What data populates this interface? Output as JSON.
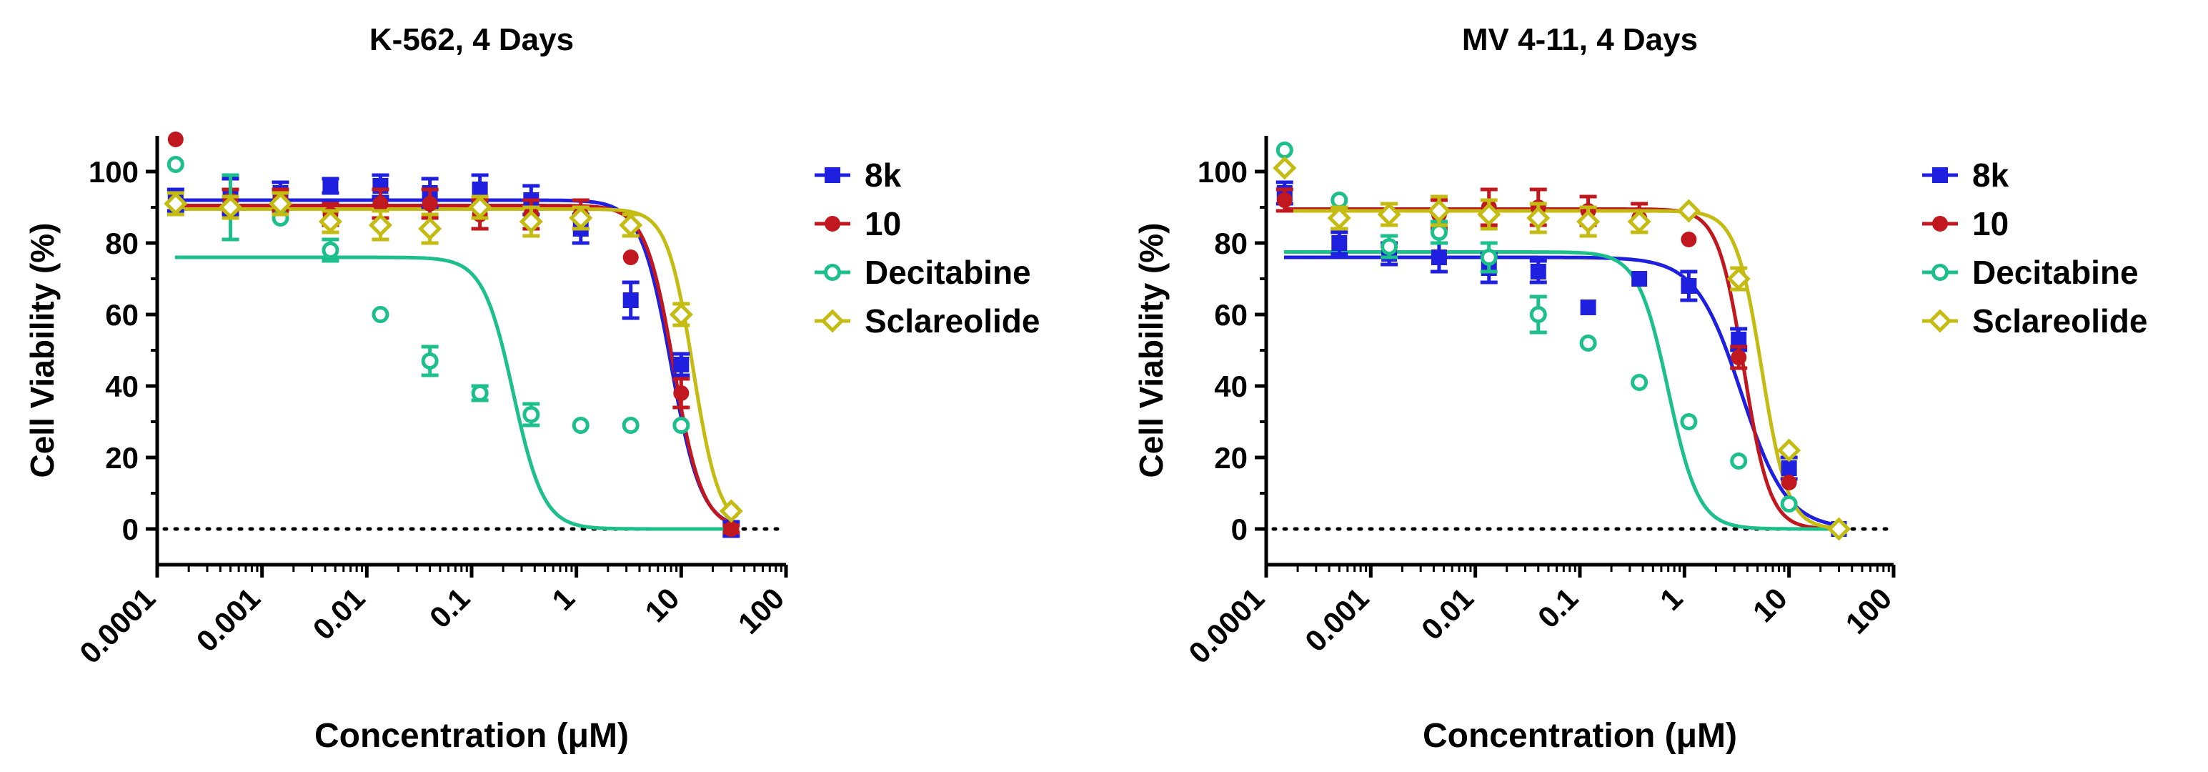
{
  "chart_data": [
    {
      "type": "scatter",
      "title": "K-562, 4 Days",
      "xlabel": "Concentration (μM)",
      "ylabel": "Cell Viability (%)",
      "xscale": "log",
      "xlim": [
        0.0001,
        100
      ],
      "ylim": [
        -10,
        110
      ],
      "xticks": [
        0.0001,
        0.001,
        0.01,
        0.1,
        1,
        10,
        100
      ],
      "xtick_labels": [
        "0.0001",
        "0.001",
        "0.01",
        "0.1",
        "1",
        "10",
        "100"
      ],
      "yticks": [
        0,
        20,
        40,
        60,
        80,
        100
      ],
      "ytick_labels": [
        "0",
        "20",
        "40",
        "60",
        "80",
        "100"
      ],
      "reference_line": 0,
      "legend_position": "right",
      "series": [
        {
          "name": "8k",
          "color": "#1f1fe0",
          "marker": "square",
          "points": [
            {
              "x": 0.00015,
              "y": 92,
              "err": 3
            },
            {
              "x": 0.0005,
              "y": 93,
              "err": 5
            },
            {
              "x": 0.0015,
              "y": 94,
              "err": 3
            },
            {
              "x": 0.0045,
              "y": 96,
              "err": 2
            },
            {
              "x": 0.0135,
              "y": 96,
              "err": 3
            },
            {
              "x": 0.04,
              "y": 94,
              "err": 4
            },
            {
              "x": 0.12,
              "y": 95,
              "err": 4
            },
            {
              "x": 0.37,
              "y": 92,
              "err": 4
            },
            {
              "x": 1.1,
              "y": 84,
              "err": 4
            },
            {
              "x": 3.3,
              "y": 64,
              "err": 5
            },
            {
              "x": 10,
              "y": 46,
              "err": 3
            },
            {
              "x": 30,
              "y": 0,
              "err": 2
            }
          ],
          "fit": {
            "top": 92,
            "bottom": 0,
            "ic50": 8,
            "hill": 3
          }
        },
        {
          "name": "10",
          "color": "#c0181e",
          "marker": "circle",
          "points": [
            {
              "x": 0.00015,
              "y": 109,
              "err": 0
            },
            {
              "x": 0.0005,
              "y": 92,
              "err": 3
            },
            {
              "x": 0.0015,
              "y": 92,
              "err": 3
            },
            {
              "x": 0.0045,
              "y": 88,
              "err": 3
            },
            {
              "x": 0.0135,
              "y": 91,
              "err": 4
            },
            {
              "x": 0.04,
              "y": 91,
              "err": 4
            },
            {
              "x": 0.12,
              "y": 88,
              "err": 4
            },
            {
              "x": 0.37,
              "y": 88,
              "err": 4
            },
            {
              "x": 1.1,
              "y": 88,
              "err": 4
            },
            {
              "x": 3.3,
              "y": 76,
              "err": 0
            },
            {
              "x": 10,
              "y": 38,
              "err": 4
            },
            {
              "x": 30,
              "y": 0,
              "err": 1
            }
          ],
          "fit": {
            "top": 90.5,
            "bottom": 0,
            "ic50": 8.5,
            "hill": 3.2
          }
        },
        {
          "name": "Decitabine",
          "color": "#1dbf8a",
          "marker": "open-circle",
          "points": [
            {
              "x": 0.00015,
              "y": 102,
              "err": 0
            },
            {
              "x": 0.0005,
              "y": 90,
              "err": 9
            },
            {
              "x": 0.0015,
              "y": 87,
              "err": 0
            },
            {
              "x": 0.0045,
              "y": 78,
              "err": 3
            },
            {
              "x": 0.0135,
              "y": 60,
              "err": 0
            },
            {
              "x": 0.04,
              "y": 47,
              "err": 4
            },
            {
              "x": 0.12,
              "y": 38,
              "err": 2
            },
            {
              "x": 0.37,
              "y": 32,
              "err": 3
            },
            {
              "x": 1.1,
              "y": 29,
              "err": 0
            },
            {
              "x": 3.3,
              "y": 29,
              "err": 0
            },
            {
              "x": 10,
              "y": 29,
              "err": 0
            },
            {
              "x": 30,
              "y": 5,
              "err": 0
            }
          ],
          "fit": {
            "top": 76,
            "bottom": 0,
            "ic50": 0.25,
            "hill": 3
          }
        },
        {
          "name": "Sclareolide",
          "color": "#c4bc12",
          "marker": "open-diamond",
          "points": [
            {
              "x": 0.00015,
              "y": 91,
              "err": 3
            },
            {
              "x": 0.0005,
              "y": 90,
              "err": 3
            },
            {
              "x": 0.0015,
              "y": 91,
              "err": 3
            },
            {
              "x": 0.0045,
              "y": 86,
              "err": 3
            },
            {
              "x": 0.0135,
              "y": 85,
              "err": 4
            },
            {
              "x": 0.04,
              "y": 84,
              "err": 4
            },
            {
              "x": 0.12,
              "y": 90,
              "err": 3
            },
            {
              "x": 0.37,
              "y": 86,
              "err": 4
            },
            {
              "x": 1.1,
              "y": 87,
              "err": 3
            },
            {
              "x": 3.3,
              "y": 85,
              "err": 3
            },
            {
              "x": 10,
              "y": 60,
              "err": 3
            },
            {
              "x": 30,
              "y": 5,
              "err": 0
            }
          ],
          "fit": {
            "top": 89.5,
            "bottom": 0,
            "ic50": 13,
            "hill": 3.5
          }
        }
      ]
    },
    {
      "type": "scatter",
      "title": "MV 4-11, 4 Days",
      "xlabel": "Concentration (μM)",
      "ylabel": "Cell Viability (%)",
      "xscale": "log",
      "xlim": [
        0.0001,
        100
      ],
      "ylim": [
        -10,
        110
      ],
      "xticks": [
        0.0001,
        0.001,
        0.01,
        0.1,
        1,
        10,
        100
      ],
      "xtick_labels": [
        "0.0001",
        "0.001",
        "0.01",
        "0.1",
        "1",
        "10",
        "100"
      ],
      "yticks": [
        0,
        20,
        40,
        60,
        80,
        100
      ],
      "ytick_labels": [
        "0",
        "20",
        "40",
        "60",
        "80",
        "100"
      ],
      "reference_line": 0,
      "legend_position": "right",
      "series": [
        {
          "name": "8k",
          "color": "#1f1fe0",
          "marker": "square",
          "points": [
            {
              "x": 0.00015,
              "y": 94,
              "err": 3
            },
            {
              "x": 0.0005,
              "y": 80,
              "err": 3
            },
            {
              "x": 0.0015,
              "y": 77,
              "err": 3
            },
            {
              "x": 0.0045,
              "y": 76,
              "err": 4
            },
            {
              "x": 0.0135,
              "y": 73,
              "err": 4
            },
            {
              "x": 0.04,
              "y": 72,
              "err": 3
            },
            {
              "x": 0.12,
              "y": 62,
              "err": 0
            },
            {
              "x": 0.37,
              "y": 70,
              "err": 0
            },
            {
              "x": 1.1,
              "y": 68,
              "err": 4
            },
            {
              "x": 3.3,
              "y": 53,
              "err": 3
            },
            {
              "x": 10,
              "y": 17,
              "err": 3
            },
            {
              "x": 30,
              "y": 0,
              "err": 0
            }
          ],
          "fit": {
            "top": 76,
            "bottom": 0,
            "ic50": 3.5,
            "hill": 2
          }
        },
        {
          "name": "10",
          "color": "#c0181e",
          "marker": "circle",
          "points": [
            {
              "x": 0.00015,
              "y": 92,
              "err": 3
            },
            {
              "x": 0.0005,
              "y": 87,
              "err": 3
            },
            {
              "x": 0.0015,
              "y": 88,
              "err": 3
            },
            {
              "x": 0.0045,
              "y": 88,
              "err": 4
            },
            {
              "x": 0.0135,
              "y": 90,
              "err": 5
            },
            {
              "x": 0.04,
              "y": 90,
              "err": 5
            },
            {
              "x": 0.12,
              "y": 89,
              "err": 4
            },
            {
              "x": 0.37,
              "y": 87,
              "err": 4
            },
            {
              "x": 1.1,
              "y": 81,
              "err": 0
            },
            {
              "x": 3.3,
              "y": 48,
              "err": 3
            },
            {
              "x": 10,
              "y": 13,
              "err": 0
            },
            {
              "x": 30,
              "y": 0,
              "err": 0
            }
          ],
          "fit": {
            "top": 89.5,
            "bottom": 0,
            "ic50": 3.7,
            "hill": 3.5
          }
        },
        {
          "name": "Decitabine",
          "color": "#1dbf8a",
          "marker": "open-circle",
          "points": [
            {
              "x": 0.00015,
              "y": 106,
              "err": 0
            },
            {
              "x": 0.0005,
              "y": 92,
              "err": 0
            },
            {
              "x": 0.0015,
              "y": 79,
              "err": 3
            },
            {
              "x": 0.0045,
              "y": 83,
              "err": 3
            },
            {
              "x": 0.0135,
              "y": 76,
              "err": 4
            },
            {
              "x": 0.04,
              "y": 60,
              "err": 5
            },
            {
              "x": 0.12,
              "y": 52,
              "err": 0
            },
            {
              "x": 0.37,
              "y": 41,
              "err": 0
            },
            {
              "x": 1.1,
              "y": 30,
              "err": 0
            },
            {
              "x": 3.3,
              "y": 19,
              "err": 0
            },
            {
              "x": 10,
              "y": 7,
              "err": 0
            },
            {
              "x": 30,
              "y": 0,
              "err": 0
            }
          ],
          "fit": {
            "top": 77.5,
            "bottom": 0,
            "ic50": 0.7,
            "hill": 3
          }
        },
        {
          "name": "Sclareolide",
          "color": "#c4bc12",
          "marker": "open-diamond",
          "points": [
            {
              "x": 0.00015,
              "y": 101,
              "err": 0
            },
            {
              "x": 0.0005,
              "y": 87,
              "err": 3
            },
            {
              "x": 0.0015,
              "y": 88,
              "err": 3
            },
            {
              "x": 0.0045,
              "y": 89,
              "err": 4
            },
            {
              "x": 0.0135,
              "y": 88,
              "err": 4
            },
            {
              "x": 0.04,
              "y": 87,
              "err": 4
            },
            {
              "x": 0.12,
              "y": 86,
              "err": 4
            },
            {
              "x": 0.37,
              "y": 86,
              "err": 3
            },
            {
              "x": 1.1,
              "y": 89,
              "err": 0
            },
            {
              "x": 3.3,
              "y": 70,
              "err": 3
            },
            {
              "x": 10,
              "y": 22,
              "err": 0
            },
            {
              "x": 30,
              "y": 0,
              "err": 0
            }
          ],
          "fit": {
            "top": 89,
            "bottom": 0,
            "ic50": 5.5,
            "hill": 3.5
          }
        }
      ]
    }
  ]
}
